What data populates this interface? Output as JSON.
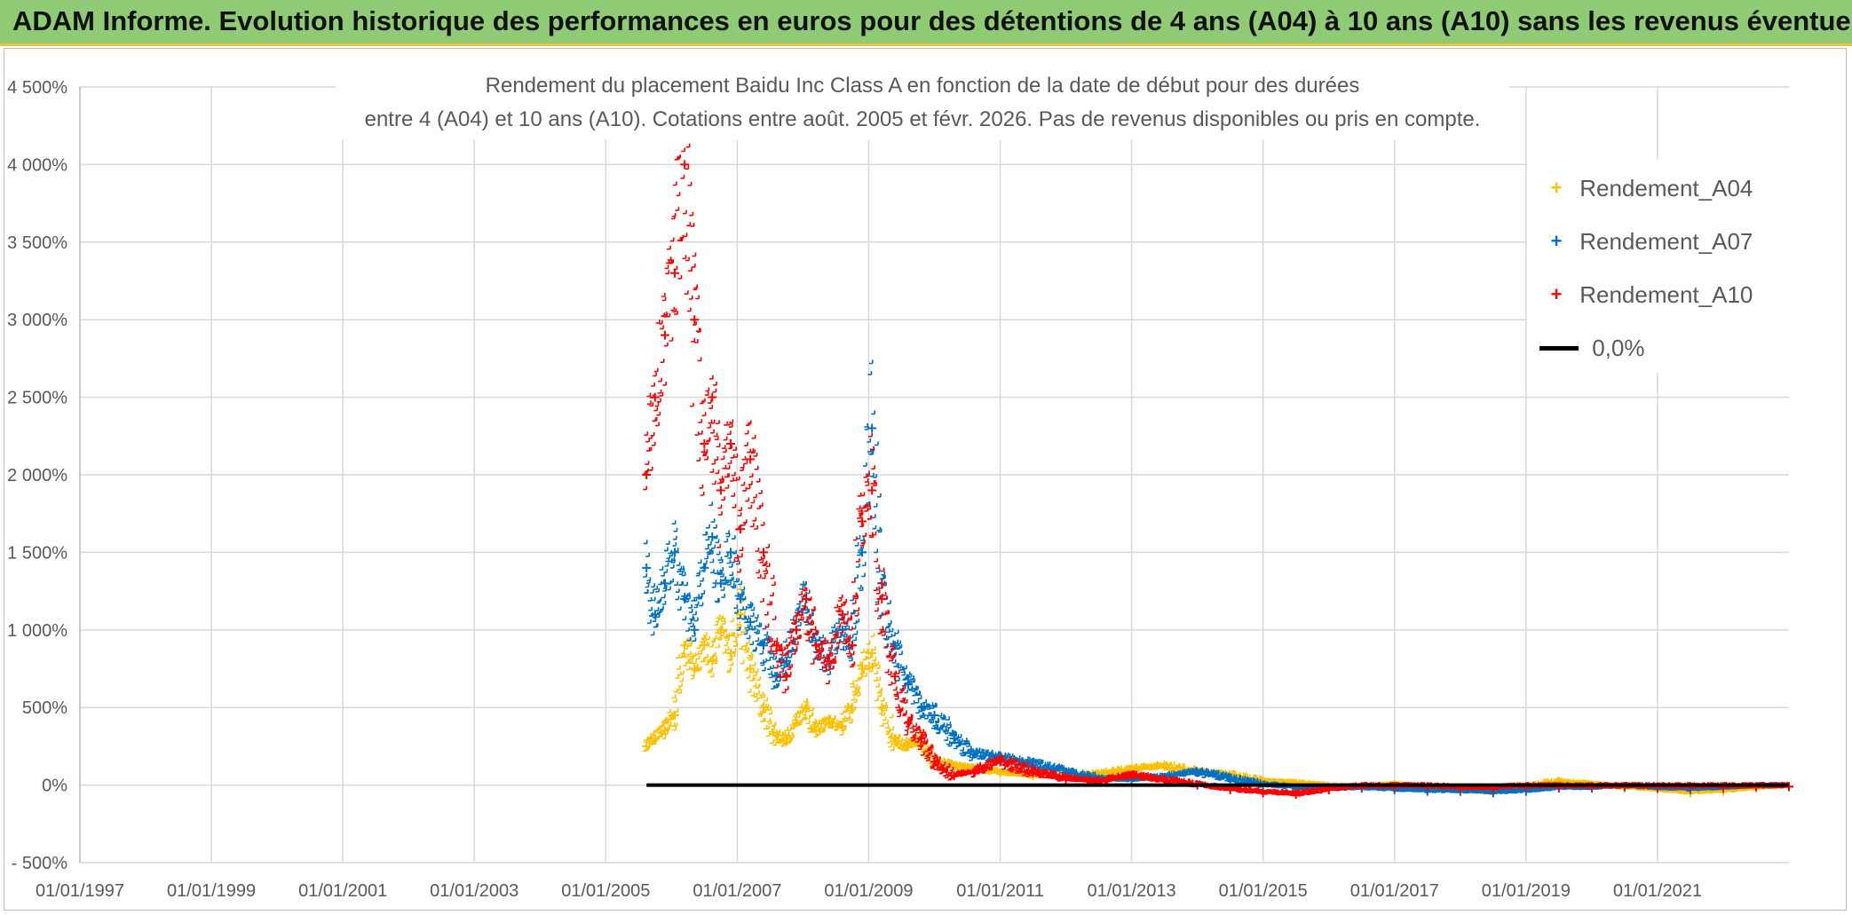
{
  "banner": {
    "title": "ADAM Informe. Evolution historique des performances en euros pour des détentions de 4 ans (A04) à 10 ans (A10) sans les revenus éventuels"
  },
  "chart_title": {
    "line1": "Rendement du placement Baidu Inc Class A en fonction de la date de début pour des durées",
    "line2": "entre 4 (A04) et 10 ans (A10). Cotations entre août. 2005 et févr. 2026. Pas de revenus disponibles ou pris en compte."
  },
  "colors": {
    "banner": "#8fcb74",
    "a04": "#ffc000",
    "a07": "#0070c0",
    "a10": "#ff0000",
    "zero": "#000000",
    "grid": "#d9d9d9",
    "text": "#595959"
  },
  "legend": {
    "items": [
      {
        "label": "Rendement_A04",
        "color": "#ffc000",
        "marker": "+"
      },
      {
        "label": "Rendement_A07",
        "color": "#0070c0",
        "marker": "+"
      },
      {
        "label": "Rendement_A10",
        "color": "#ff0000",
        "marker": "+"
      },
      {
        "label": "0,0%",
        "color": "#000000",
        "marker": "line"
      }
    ]
  },
  "chart_data": {
    "type": "scatter",
    "title": "Rendement du placement Baidu Inc Class A en fonction de la date de début pour des durées entre 4 (A04) et 10 ans (A10). Cotations entre août. 2005 et févr. 2026. Pas de revenus disponibles ou pris en compte.",
    "x_axis": {
      "type": "date",
      "range": [
        1997.0,
        2023.0
      ],
      "tick_labels": [
        "01/01/1997",
        "01/01/1999",
        "01/01/2001",
        "01/01/2003",
        "01/01/2005",
        "01/01/2007",
        "01/01/2009",
        "01/01/2011",
        "01/01/2013",
        "01/01/2015",
        "01/01/2017",
        "01/01/2019",
        "01/01/2021"
      ],
      "tick_values": [
        1997,
        1999,
        2001,
        2003,
        2005,
        2007,
        2009,
        2011,
        2013,
        2015,
        2017,
        2019,
        2021
      ]
    },
    "y_axis": {
      "unit": "%",
      "range": [
        -500,
        4500
      ],
      "tick_values": [
        -500,
        0,
        500,
        1000,
        1500,
        2000,
        2500,
        3000,
        3500,
        4000,
        4500
      ],
      "tick_labels": [
        "- 500%",
        "0%",
        "500%",
        "1 000%",
        "1 500%",
        "2 000%",
        "2 500%",
        "3 000%",
        "3 500%",
        "4 000%",
        "4 500%"
      ]
    },
    "grid": true,
    "legend_position": "top-right",
    "series": [
      {
        "name": "Rendement_A04",
        "color": "#ffc000",
        "x": [
          2005.62,
          2005.75,
          2005.9,
          2006.05,
          2006.2,
          2006.35,
          2006.5,
          2006.62,
          2006.75,
          2006.9,
          2007.05,
          2007.2,
          2007.4,
          2007.6,
          2007.75,
          2007.9,
          2008.05,
          2008.2,
          2008.4,
          2008.6,
          2008.75,
          2008.9,
          2009.05,
          2009.2,
          2009.4,
          2009.6,
          2009.8,
          2010.0,
          2010.3,
          2010.6,
          2011.0,
          2011.5,
          2012.0,
          2012.5,
          2013.0,
          2013.5,
          2014.0,
          2014.5,
          2015.0,
          2015.5,
          2016.0,
          2016.5,
          2017.0,
          2017.5,
          2018.0,
          2018.5,
          2019.0,
          2019.5,
          2020.0,
          2020.5,
          2021.0,
          2021.5,
          2022.0,
          2022.5,
          2023.0
        ],
        "y": [
          250,
          300,
          350,
          450,
          900,
          750,
          900,
          800,
          1000,
          850,
          1100,
          750,
          500,
          320,
          280,
          400,
          500,
          350,
          400,
          380,
          500,
          750,
          850,
          500,
          300,
          250,
          280,
          150,
          120,
          100,
          80,
          60,
          50,
          70,
          100,
          120,
          80,
          60,
          20,
          10,
          -10,
          -20,
          0,
          -30,
          -40,
          -50,
          -20,
          20,
          0,
          -20,
          -30,
          -50,
          -40,
          -20,
          -10
        ]
      },
      {
        "name": "Rendement_A07",
        "color": "#0070c0",
        "x": [
          2005.62,
          2005.75,
          2005.9,
          2006.05,
          2006.2,
          2006.35,
          2006.5,
          2006.62,
          2006.75,
          2006.9,
          2007.05,
          2007.2,
          2007.4,
          2007.6,
          2007.75,
          2007.9,
          2008.05,
          2008.2,
          2008.4,
          2008.6,
          2008.75,
          2008.9,
          2009.05,
          2009.2,
          2009.4,
          2009.6,
          2009.8,
          2010.0,
          2010.3,
          2010.6,
          2011.0,
          2011.5,
          2012.0,
          2012.5,
          2013.0,
          2013.5,
          2014.0,
          2014.5,
          2015.0,
          2015.5,
          2016.0,
          2016.5,
          2017.0,
          2017.5,
          2018.0,
          2018.5,
          2019.0,
          2019.5,
          2020.0,
          2020.5,
          2021.0,
          2021.5,
          2022.0,
          2022.5,
          2023.0
        ],
        "y": [
          1400,
          1100,
          1300,
          1500,
          1200,
          1000,
          1400,
          1600,
          1300,
          1500,
          1200,
          1050,
          900,
          700,
          800,
          1000,
          1200,
          900,
          800,
          1000,
          900,
          1500,
          2300,
          1300,
          900,
          650,
          500,
          450,
          300,
          200,
          170,
          130,
          80,
          40,
          30,
          50,
          80,
          40,
          0,
          -20,
          -30,
          -20,
          -30,
          -40,
          -40,
          -50,
          -40,
          -20,
          -20,
          -10,
          -20,
          -30,
          -20,
          -10,
          -10
        ]
      },
      {
        "name": "Rendement_A10",
        "color": "#ff0000",
        "x": [
          2005.62,
          2005.75,
          2005.9,
          2006.05,
          2006.2,
          2006.35,
          2006.5,
          2006.62,
          2006.75,
          2006.9,
          2007.05,
          2007.2,
          2007.4,
          2007.6,
          2007.75,
          2007.9,
          2008.05,
          2008.2,
          2008.4,
          2008.6,
          2008.75,
          2008.9,
          2009.05,
          2009.2,
          2009.4,
          2009.6,
          2009.8,
          2010.0,
          2010.3,
          2010.6,
          2011.0,
          2011.5,
          2012.0,
          2012.5,
          2013.0,
          2013.5,
          2014.0,
          2014.5,
          2015.0,
          2015.5,
          2016.0,
          2016.5,
          2017.0,
          2017.5,
          2018.0,
          2018.5,
          2019.0,
          2019.5,
          2020.0,
          2020.5,
          2021.0,
          2021.5,
          2022.0,
          2022.5,
          2023.0
        ],
        "y": [
          2000,
          2500,
          2900,
          3300,
          4000,
          3000,
          2200,
          2500,
          1900,
          2200,
          1650,
          2100,
          1500,
          900,
          700,
          1000,
          1200,
          900,
          800,
          1100,
          900,
          1700,
          1900,
          1200,
          700,
          400,
          300,
          150,
          60,
          80,
          150,
          80,
          40,
          20,
          60,
          30,
          0,
          -30,
          -50,
          -60,
          -30,
          -10,
          -10,
          -10,
          -20,
          -20,
          -10,
          -10,
          -10,
          -10,
          -10,
          -10,
          -10,
          -10,
          -10
        ]
      },
      {
        "name": "0,0%",
        "color": "#000000",
        "type": "line",
        "x": [
          2005.62,
          2023.0
        ],
        "y": [
          0,
          0
        ]
      }
    ]
  }
}
